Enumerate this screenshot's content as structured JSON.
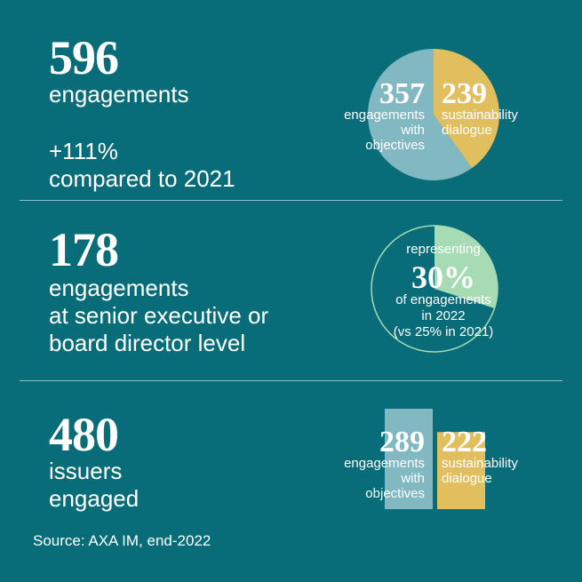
{
  "colors": {
    "background": "#086d78",
    "objectives": "#82b8c2",
    "sustainability": "#e1bf5e",
    "senior": "#a7dbb4",
    "divider": "#8cc0c5"
  },
  "section1": {
    "value": "596",
    "label": "engagements",
    "change": "+111%",
    "change_label": "compared to 2021"
  },
  "section2": {
    "value": "178",
    "label_lines": [
      "engagements",
      "at senior executive or",
      "board director level"
    ]
  },
  "section3": {
    "value": "480",
    "label_lines": [
      "issuers",
      "engaged"
    ]
  },
  "source": "Source: AXA IM, end-2022",
  "chart_data": [
    {
      "type": "pie",
      "slices": [
        {
          "value": 357,
          "value_label": "357",
          "name_lines": [
            "engagements",
            "with",
            "objectives"
          ],
          "color": "#82b8c2"
        },
        {
          "value": 239,
          "value_label": "239",
          "name_lines": [
            "sustainability",
            "dialogue"
          ],
          "color": "#e1bf5e"
        }
      ],
      "total": 596
    },
    {
      "type": "pie",
      "percent": 30,
      "value_label": "30%",
      "text_top": "representing",
      "text_lines": [
        "of engagements",
        "in 2022",
        "(vs 25% in 2021)"
      ],
      "color": "#a7dbb4"
    },
    {
      "type": "bar",
      "categories": [
        "engagements with objectives",
        "sustainability dialogue"
      ],
      "values": [
        289,
        222
      ],
      "value_labels": [
        "289",
        "222"
      ],
      "name_lines": [
        [
          "engagements",
          "with",
          "objectives"
        ],
        [
          "sustainability",
          "dialogue"
        ]
      ],
      "colors": [
        "#82b8c2",
        "#e1bf5e"
      ]
    }
  ]
}
